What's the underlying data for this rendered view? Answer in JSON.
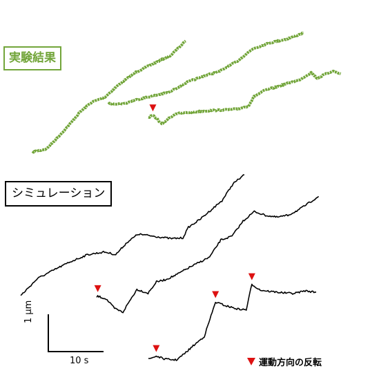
{
  "labels": {
    "experiment": "実験結果",
    "simulation": "シミュレーション",
    "legend": "運動方向の反転"
  },
  "scale_bars": {
    "time": "10 s",
    "distance": "1 µm"
  },
  "colors": {
    "experiment": "#72a53a",
    "simulation": "#000000",
    "reversal": "#dd1111"
  },
  "chart_data": {
    "type": "line",
    "x_unit": "s",
    "y_unit": "µm",
    "time_scale": "10 s",
    "distance_scale": "1 µm",
    "groups": [
      {
        "label": "実験結果",
        "series": [
          {
            "start": [
              0,
              0.0
            ],
            "points": [
              [
                0,
                0.0
              ],
              [
                2.5,
                0.08
              ],
              [
                4.5,
                0.38
              ],
              [
                6.5,
                0.7
              ],
              [
                8.5,
                1.05
              ],
              [
                10.5,
                1.3
              ],
              [
                13,
                1.45
              ],
              [
                15.5,
                1.78
              ],
              [
                18.5,
                2.1
              ],
              [
                22,
                2.35
              ],
              [
                24.8,
                2.55
              ],
              [
                27.4,
                2.92
              ]
            ]
          },
          {
            "start": [
              9.1,
              0.0
            ],
            "points": [
              [
                9.1,
                0.0
              ],
              [
                12,
                0.0
              ],
              [
                14,
                0.1
              ],
              [
                17,
                0.2
              ],
              [
                20,
                0.3
              ],
              [
                23,
                0.55
              ],
              [
                26,
                0.72
              ],
              [
                29,
                0.85
              ],
              [
                32,
                1.1
              ],
              [
                35,
                1.45
              ],
              [
                38,
                1.6
              ],
              [
                41,
                1.7
              ],
              [
                44,
                1.86
              ]
            ]
          },
          {
            "start": [
              15.1,
              0.0
            ],
            "reversals": [
              [
                15.9,
                0.05
              ]
            ],
            "points": [
              [
                15.1,
                0.0
              ],
              [
                15.9,
                0.05
              ],
              [
                16.6,
                -0.03
              ],
              [
                17.5,
                -0.18
              ],
              [
                18.5,
                -0.05
              ],
              [
                20,
                0.1
              ],
              [
                23,
                0.14
              ],
              [
                26,
                0.18
              ],
              [
                29,
                0.2
              ],
              [
                31,
                0.22
              ],
              [
                33,
                0.3
              ],
              [
                34,
                0.55
              ],
              [
                36,
                0.72
              ],
              [
                38,
                0.8
              ],
              [
                40,
                0.9
              ],
              [
                42,
                0.98
              ],
              [
                44.2,
                1.18
              ],
              [
                45.3,
                1.03
              ],
              [
                46.5,
                1.12
              ],
              [
                48,
                1.22
              ],
              [
                49.5,
                1.15
              ]
            ]
          }
        ]
      },
      {
        "label": "シミュレーション",
        "series": [
          {
            "start": [
              0,
              0.0
            ],
            "points": [
              [
                0,
                0.0
              ],
              [
                3,
                0.45
              ],
              [
                6,
                0.68
              ],
              [
                9,
                0.9
              ],
              [
                12,
                1.08
              ],
              [
                15,
                1.15
              ],
              [
                17,
                1.08
              ],
              [
                19,
                1.4
              ],
              [
                21,
                1.62
              ],
              [
                24,
                1.56
              ],
              [
                27,
                1.5
              ],
              [
                29,
                1.52
              ],
              [
                30,
                1.8
              ],
              [
                32,
                2.0
              ],
              [
                34,
                2.25
              ],
              [
                36,
                2.5
              ],
              [
                38,
                2.95
              ],
              [
                40,
                3.18
              ]
            ]
          },
          {
            "start": [
              7.8,
              0.0
            ],
            "reversals": [
              [
                8.0,
                0.02
              ]
            ],
            "points": [
              [
                7.8,
                0.0
              ],
              [
                8.0,
                0.02
              ],
              [
                9.5,
                -0.05
              ],
              [
                11,
                -0.3
              ],
              [
                12.5,
                -0.4
              ],
              [
                13.5,
                -0.15
              ],
              [
                15,
                0.2
              ],
              [
                17,
                0.1
              ],
              [
                18.5,
                0.4
              ],
              [
                20,
                0.45
              ],
              [
                22,
                0.58
              ],
              [
                24,
                0.75
              ],
              [
                26,
                0.9
              ],
              [
                28,
                1.05
              ],
              [
                30,
                1.5
              ],
              [
                32,
                1.6
              ],
              [
                34,
                2.0
              ],
              [
                36,
                2.25
              ],
              [
                38,
                2.15
              ],
              [
                40,
                2.1
              ],
              [
                42,
                2.15
              ],
              [
                44,
                2.3
              ],
              [
                46,
                2.5
              ],
              [
                47.5,
                2.65
              ]
            ]
          },
          {
            "start": [
              14,
              0.0
            ],
            "reversals": [
              [
                15.4,
                0.08
              ],
              [
                26.0,
                1.5
              ],
              [
                32.5,
                1.97
              ]
            ],
            "points": [
              [
                14,
                0.0
              ],
              [
                15.4,
                0.08
              ],
              [
                17,
                0.0
              ],
              [
                19,
                -0.02
              ],
              [
                20.5,
                0.15
              ],
              [
                22,
                0.35
              ],
              [
                24,
                0.6
              ],
              [
                26,
                1.5
              ],
              [
                28,
                1.4
              ],
              [
                30,
                1.32
              ],
              [
                31.5,
                1.3
              ],
              [
                32.5,
                1.97
              ],
              [
                34,
                1.82
              ],
              [
                36,
                1.78
              ],
              [
                38,
                1.75
              ],
              [
                40,
                1.73
              ],
              [
                42,
                1.8
              ],
              [
                44,
                1.76
              ]
            ]
          }
        ]
      }
    ]
  }
}
